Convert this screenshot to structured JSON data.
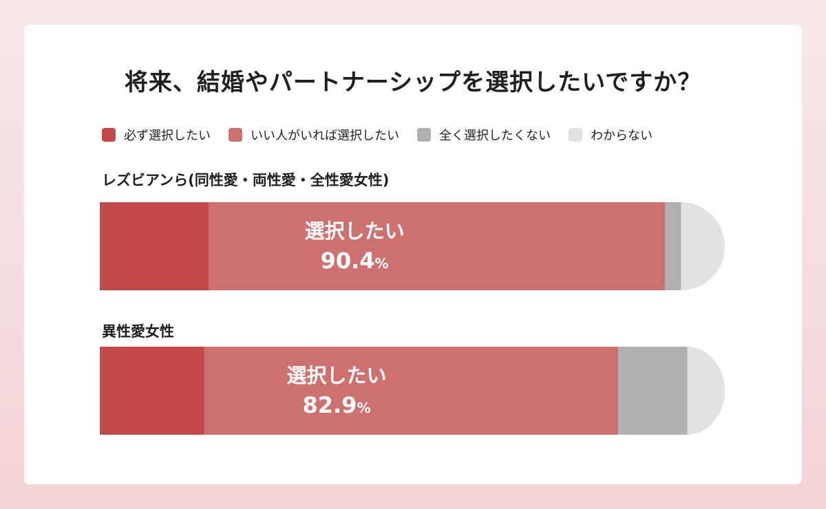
{
  "title": "将来、結婚やパートナーシップを選択したいですか？",
  "chart_data": {
    "type": "bar",
    "orientation": "horizontal",
    "stacked": true,
    "percent_scale": true,
    "legend_position": "top",
    "legend": [
      {
        "label": "必ず選択したい",
        "color": "#c2494a"
      },
      {
        "label": "いい人がいれば選択したい",
        "color": "#cd7170"
      },
      {
        "label": "全く選択したくない",
        "color": "#b0b0b0"
      },
      {
        "label": "わからない",
        "color": "#e2e2e2"
      }
    ],
    "categories": [
      "レズビアンら(同性愛・両性愛・全性愛女性)",
      "異性愛女性"
    ],
    "series": [
      {
        "name": "必ず選択したい",
        "color": "#c2494a",
        "values": [
          17.4,
          16.7
        ]
      },
      {
        "name": "いい人がいれば選択したい",
        "color": "#cd7170",
        "values": [
          73.0,
          66.2
        ]
      },
      {
        "name": "全く選択したくない",
        "color": "#b0b0b0",
        "values": [
          2.6,
          11.1
        ]
      },
      {
        "name": "わからない",
        "color": "#e2e2e2",
        "values": [
          7.0,
          6.0
        ]
      }
    ],
    "annotations": [
      {
        "label": "選択したい",
        "value": "90.4",
        "unit": "%"
      },
      {
        "label": "選択したい",
        "value": "82.9",
        "unit": "%"
      }
    ]
  }
}
